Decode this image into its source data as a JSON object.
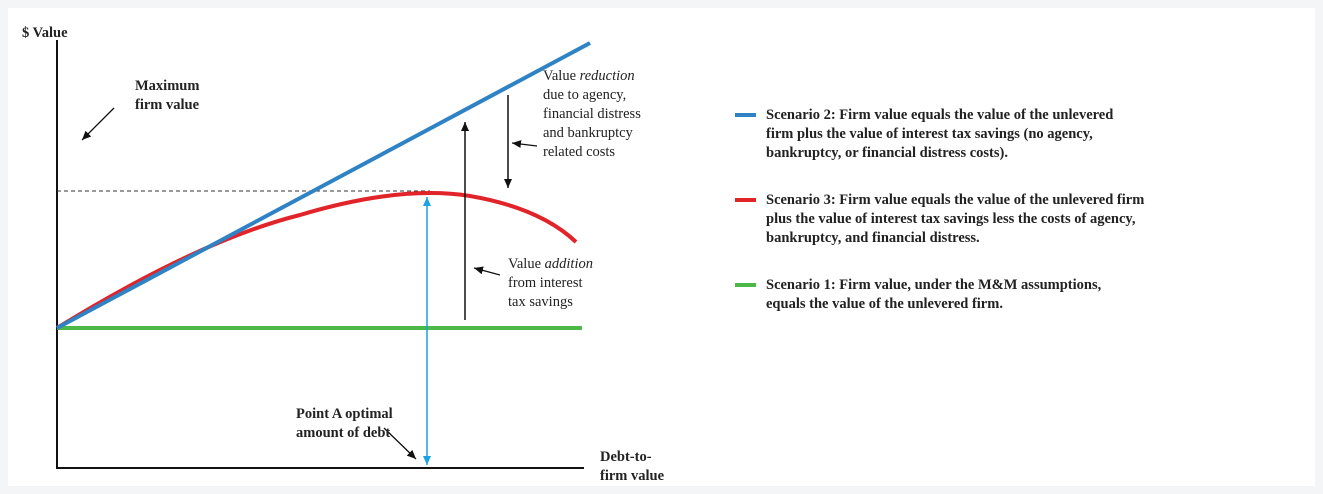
{
  "axes": {
    "y_label": "$ Value",
    "x_label": [
      "Debt-to-",
      "firm value"
    ]
  },
  "annotations": {
    "maximum": [
      "Maximum",
      "firm value"
    ],
    "reduction": [
      [
        "Value ",
        "reduction"
      ],
      "due to agency,",
      "financial distress",
      "and bankruptcy",
      "related costs"
    ],
    "addition": [
      [
        "Value ",
        "addition"
      ],
      "from interest",
      "tax savings"
    ],
    "point_a": [
      "Point A optimal",
      "amount of debt"
    ]
  },
  "legend": [
    {
      "color": "#2f83c5",
      "lines": [
        "Scenario 2: Firm value equals the value of the unlevered",
        "firm plus the value of interest tax savings (no agency,",
        "bankruptcy, or financial distress costs)."
      ]
    },
    {
      "color": "#e0242a",
      "lines": [
        "Scenario 3: Firm value equals the value of the unlevered firm",
        "plus the value of interest tax savings less the costs of agency,",
        "bankruptcy, and financial distress."
      ]
    },
    {
      "color": "#4cb847",
      "lines": [
        "Scenario 1: Firm value, under the M&M assumptions,",
        "equals the value of the unlevered firm."
      ]
    }
  ]
}
